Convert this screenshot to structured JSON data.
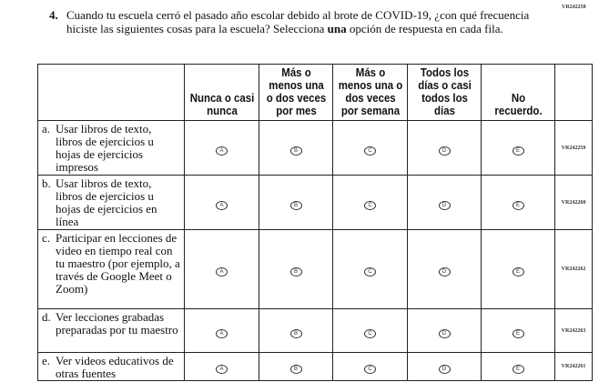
{
  "question_id": "VR242258",
  "question": {
    "number": "4.",
    "text_before": "Cuando tu escuela cerró el pasado año escolar debido al brote de COVID-19, ¿con qué frecuencia hiciste las siguientes cosas para la escuela? Selecciona ",
    "text_bold": "una",
    "text_after": " opción de respuesta en cada fila."
  },
  "columns": [
    "Nunca o casi nunca",
    "Más o menos una o dos veces por mes",
    "Más o menos una o dos veces por semana",
    "Todos los días o casi todos los días",
    "No recuerdo."
  ],
  "options": [
    "A",
    "B",
    "C",
    "D",
    "E"
  ],
  "rows": [
    {
      "letter": "a.",
      "text": "Usar libros de texto, libros de ejercicios u hojas de ejercicios impresos",
      "id": "VR242259"
    },
    {
      "letter": "b.",
      "text": "Usar libros de texto, libros de ejercicios u hojas de ejercicios en línea",
      "id": "VR242260"
    },
    {
      "letter": "c.",
      "text": "Participar en lecciones de video en tiempo real con tu maestro (por ejemplo, a través de Google Meet o Zoom)",
      "id": "VR242262"
    },
    {
      "letter": "d.",
      "text": "Ver lecciones grabadas preparadas por tu maestro",
      "id": "VR242263"
    },
    {
      "letter": "e.",
      "text": "Ver videos educativos de otras fuentes",
      "id": "VR242261"
    }
  ]
}
